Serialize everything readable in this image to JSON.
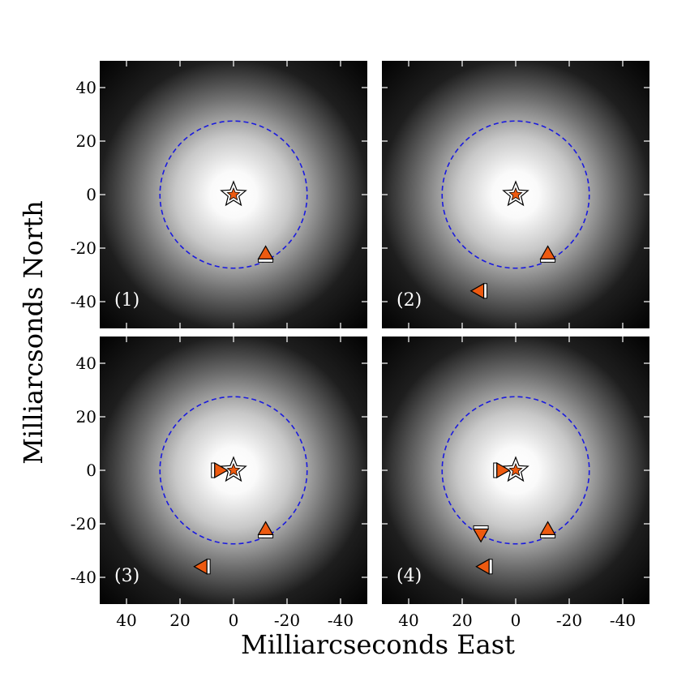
{
  "chart_data": {
    "type": "scatter",
    "xlabel": "Milliarcseconds East",
    "ylabel": "Milliarcsonds North",
    "xlim": [
      50,
      -50
    ],
    "ylim": [
      -50,
      50
    ],
    "x_ticks": [
      "40",
      "20",
      "0",
      "-20",
      "-40"
    ],
    "y_ticks": [
      "40",
      "20",
      "0",
      "-20",
      "-40"
    ],
    "x_tick_values": [
      40,
      20,
      0,
      -20,
      -40
    ],
    "y_tick_values": [
      40,
      20,
      0,
      -20,
      -40
    ],
    "circle_radius": 27.5,
    "colors": {
      "marker_fill": "#ee5a10",
      "marker_edge": "#000000",
      "marker_bar": "#ffffff",
      "circle": "#1a1adf",
      "glow_center": "#ffffff",
      "glow_edge": "#000000"
    },
    "panels": [
      {
        "label": "(1)",
        "points": [
          {
            "x": 0,
            "y": 0,
            "marker": "star"
          },
          {
            "x": -12,
            "y": -22,
            "marker": "triangle-up"
          }
        ]
      },
      {
        "label": "(2)",
        "points": [
          {
            "x": 0,
            "y": 0,
            "marker": "star"
          },
          {
            "x": -12,
            "y": -22,
            "marker": "triangle-up"
          },
          {
            "x": 14,
            "y": -36,
            "marker": "triangle-left"
          }
        ]
      },
      {
        "label": "(3)",
        "points": [
          {
            "x": 0,
            "y": 0,
            "marker": "star"
          },
          {
            "x": 5,
            "y": 0,
            "marker": "triangle-right"
          },
          {
            "x": -12,
            "y": -22,
            "marker": "triangle-up"
          },
          {
            "x": 12,
            "y": -36,
            "marker": "triangle-left"
          }
        ]
      },
      {
        "label": "(4)",
        "points": [
          {
            "x": 0,
            "y": 0,
            "marker": "star"
          },
          {
            "x": 5,
            "y": 0,
            "marker": "triangle-right"
          },
          {
            "x": -12,
            "y": -22,
            "marker": "triangle-up"
          },
          {
            "x": 13,
            "y": -24,
            "marker": "triangle-down"
          },
          {
            "x": 12,
            "y": -36,
            "marker": "triangle-left"
          }
        ]
      }
    ]
  }
}
